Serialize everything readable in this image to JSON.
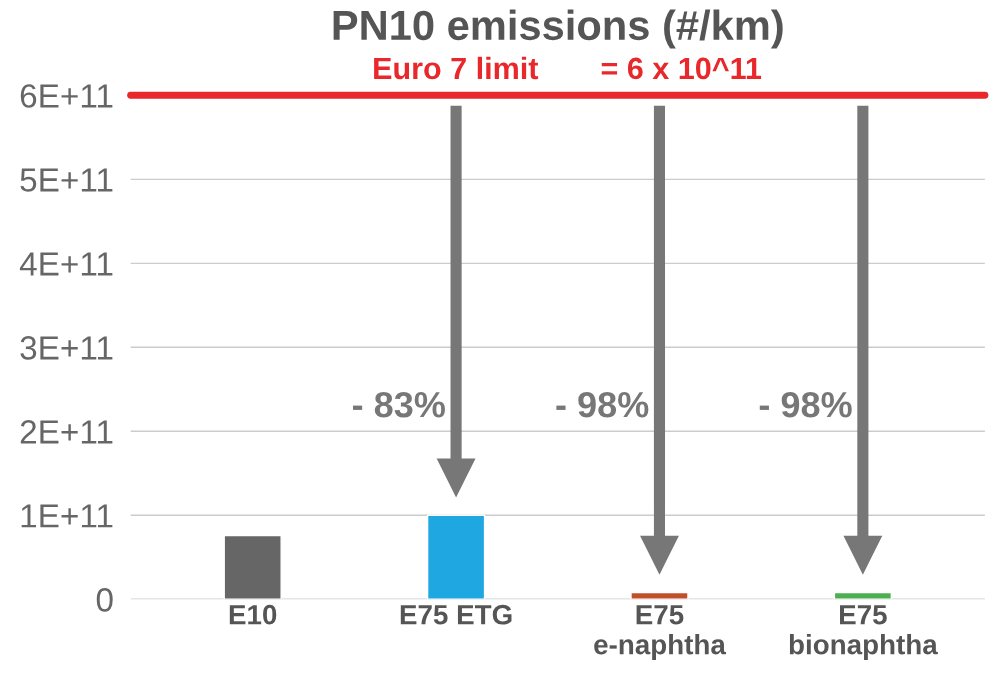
{
  "chart_data": {
    "type": "bar",
    "title": "PN10 emissions (#/km)",
    "categories": [
      "E10",
      "E75 ETG",
      "E75\ne-naphtha",
      "E75\nbionaphtha"
    ],
    "values": [
      76000000000.0,
      100000000000.0,
      8000000000.0,
      8000000000.0
    ],
    "colors": [
      "#666666",
      "#1ea7e1",
      "#c0502a",
      "#4caf50"
    ],
    "ylim": [
      0,
      600000000000.0
    ],
    "yticks": [
      0,
      {
        "value": 100000000000.0,
        "label": "1E+11"
      },
      {
        "value": 200000000000.0,
        "label": "2E+11"
      },
      {
        "value": 300000000000.0,
        "label": "3E+11"
      },
      {
        "value": 400000000000.0,
        "label": "4E+11"
      },
      {
        "value": 500000000000.0,
        "label": "5E+11"
      },
      {
        "value": 600000000000.0,
        "label": "6E+11"
      }
    ],
    "grid": "y",
    "ref_lines": [
      {
        "axis": "y",
        "value": 600000000000.0,
        "label": "Euro 7 limit",
        "color": "#e8282b"
      }
    ],
    "annotations": [
      "= 6 x 10^11",
      "- 83%",
      "- 98%",
      "- 98%"
    ]
  }
}
